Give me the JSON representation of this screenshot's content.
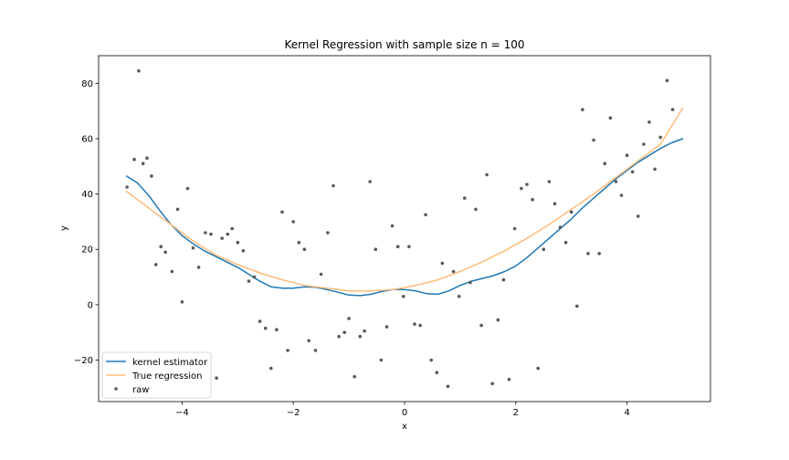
{
  "chart_data": {
    "type": "line",
    "title": "Kernel Regression with sample size n = 100",
    "xlabel": "x",
    "ylabel": "y",
    "xlim": [
      -5.5,
      5.5
    ],
    "ylim": [
      -35,
      90
    ],
    "x_ticks": [
      -4,
      -2,
      0,
      2,
      4
    ],
    "x_tick_labels": [
      "−4",
      "−2",
      "0",
      "2",
      "4"
    ],
    "y_ticks": [
      -20,
      0,
      20,
      40,
      60,
      80
    ],
    "y_tick_labels": [
      "−20",
      "0",
      "20",
      "40",
      "60",
      "80"
    ],
    "grid": false,
    "legend_position": "lower-left",
    "series": [
      {
        "name": "kernel estimator",
        "kind": "line",
        "color": "#1f77b4",
        "x": [
          -5.0,
          -4.8,
          -4.6,
          -4.4,
          -4.2,
          -4.0,
          -3.8,
          -3.6,
          -3.4,
          -3.2,
          -3.0,
          -2.8,
          -2.6,
          -2.4,
          -2.2,
          -2.0,
          -1.8,
          -1.6,
          -1.4,
          -1.2,
          -1.0,
          -0.8,
          -0.6,
          -0.4,
          -0.2,
          0.0,
          0.2,
          0.4,
          0.6,
          0.8,
          1.0,
          1.2,
          1.4,
          1.6,
          1.8,
          2.0,
          2.2,
          2.4,
          2.6,
          2.8,
          3.0,
          3.2,
          3.4,
          3.6,
          3.8,
          4.0,
          4.2,
          4.4,
          4.6,
          4.8,
          5.0
        ],
        "y": [
          46.5,
          44.0,
          39.5,
          34.0,
          29.0,
          25.0,
          22.0,
          19.5,
          17.5,
          15.5,
          13.5,
          11.0,
          8.5,
          6.5,
          6.0,
          6.0,
          6.5,
          6.3,
          5.5,
          4.5,
          3.5,
          3.3,
          3.8,
          4.8,
          5.5,
          5.5,
          5.0,
          4.0,
          3.8,
          5.0,
          7.0,
          8.5,
          9.5,
          10.5,
          12.0,
          14.0,
          17.0,
          20.5,
          24.0,
          27.5,
          31.0,
          35.0,
          38.5,
          42.0,
          45.5,
          48.5,
          51.5,
          54.0,
          56.5,
          58.5,
          60.0
        ]
      },
      {
        "name": "True regression",
        "kind": "line",
        "color": "#ffbb78",
        "x": [
          -5.0,
          -4.6,
          -4.2,
          -3.8,
          -3.4,
          -3.0,
          -2.6,
          -2.2,
          -1.8,
          -1.4,
          -1.0,
          -0.6,
          -0.2,
          0.2,
          0.6,
          1.0,
          1.4,
          1.8,
          2.2,
          2.6,
          3.0,
          3.4,
          3.8,
          4.2,
          4.6,
          5.0
        ],
        "y": [
          41.0,
          35.0,
          29.0,
          23.0,
          18.0,
          14.5,
          11.5,
          9.0,
          7.0,
          6.0,
          5.0,
          5.0,
          5.5,
          7.0,
          9.0,
          12.0,
          15.5,
          19.5,
          24.0,
          29.0,
          34.5,
          40.0,
          46.0,
          52.0,
          58.0,
          71.0
        ]
      },
      {
        "name": "raw",
        "kind": "scatter",
        "color": "#595959",
        "x": [
          -4.99,
          -4.86,
          -4.78,
          -4.7,
          -4.63,
          -4.55,
          -4.47,
          -4.38,
          -4.3,
          -4.18,
          -4.08,
          -4.0,
          -3.9,
          -3.8,
          -3.7,
          -3.58,
          -3.48,
          -3.38,
          -3.28,
          -3.18,
          -3.1,
          -3.0,
          -2.9,
          -2.8,
          -2.7,
          -2.6,
          -2.5,
          -2.4,
          -2.3,
          -2.2,
          -2.1,
          -2.0,
          -1.9,
          -1.8,
          -1.72,
          -1.6,
          -1.5,
          -1.38,
          -1.28,
          -1.18,
          -1.08,
          -1.0,
          -0.9,
          -0.8,
          -0.72,
          -0.62,
          -0.52,
          -0.42,
          -0.32,
          -0.22,
          -0.12,
          -0.02,
          0.08,
          0.18,
          0.28,
          0.38,
          0.48,
          0.58,
          0.68,
          0.78,
          0.88,
          0.98,
          1.08,
          1.18,
          1.28,
          1.38,
          1.48,
          1.58,
          1.68,
          1.78,
          1.88,
          1.98,
          2.1,
          2.2,
          2.3,
          2.4,
          2.5,
          2.6,
          2.7,
          2.8,
          2.9,
          3.0,
          3.1,
          3.2,
          3.3,
          3.4,
          3.5,
          3.6,
          3.7,
          3.8,
          3.9,
          4.0,
          4.1,
          4.2,
          4.3,
          4.4,
          4.5,
          4.6,
          4.72,
          4.82
        ],
        "y": [
          42.5,
          52.5,
          84.5,
          51.0,
          53.0,
          46.5,
          14.5,
          21.0,
          19.0,
          12.0,
          34.5,
          1.0,
          42.0,
          20.5,
          13.5,
          26.0,
          25.5,
          -26.5,
          24.0,
          25.5,
          27.5,
          22.5,
          19.5,
          8.5,
          10.0,
          -6.0,
          -8.5,
          -23.0,
          -9.0,
          33.5,
          -16.5,
          30.0,
          22.5,
          20.0,
          -13.0,
          -16.5,
          11.0,
          26.0,
          43.0,
          -11.5,
          -10.0,
          -5.0,
          -26.0,
          -11.5,
          -9.5,
          44.5,
          20.0,
          -20.0,
          -8.0,
          28.5,
          21.0,
          3.0,
          21.0,
          -7.0,
          -7.5,
          32.5,
          -20.0,
          -24.5,
          15.0,
          -29.5,
          12.0,
          3.0,
          38.5,
          8.0,
          34.5,
          -7.5,
          47.0,
          -28.5,
          -5.5,
          9.0,
          -27.0,
          27.5,
          42.0,
          43.5,
          38.0,
          -23.0,
          20.0,
          44.5,
          36.5,
          28.0,
          22.5,
          33.5,
          -0.5,
          70.5,
          18.5,
          59.5,
          18.5,
          51.0,
          67.5,
          44.5,
          39.5,
          54.0,
          48.0,
          32.0,
          58.0,
          66.0,
          49.0,
          60.5,
          81.0,
          70.5
        ]
      }
    ]
  }
}
